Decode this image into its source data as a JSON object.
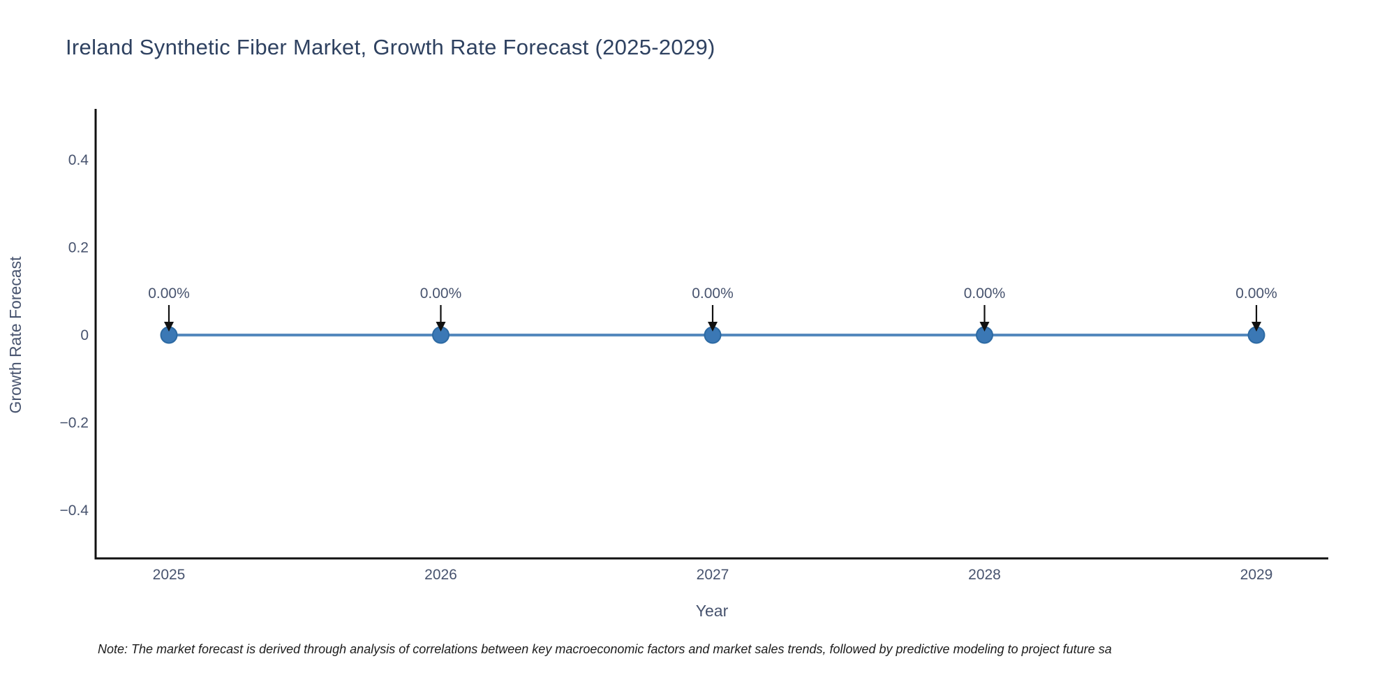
{
  "title": "Ireland Synthetic Fiber Market, Growth Rate Forecast (2025-2029)",
  "note": "Note: The market forecast is derived through analysis of correlations between key macroeconomic factors and market sales trends, followed by predictive modeling to project future sa",
  "chart_data": {
    "type": "line",
    "title": "Ireland Synthetic Fiber Market, Growth Rate Forecast (2025-2029)",
    "xlabel": "Year",
    "ylabel": "Growth Rate Forecast",
    "categories": [
      "2025",
      "2026",
      "2027",
      "2028",
      "2029"
    ],
    "series": [
      {
        "name": "Growth Rate Forecast",
        "values": [
          0,
          0,
          0,
          0,
          0
        ],
        "point_labels": [
          "0.00%",
          "0.00%",
          "0.00%",
          "0.00%",
          "0.00%"
        ]
      }
    ],
    "yticks": [
      0.4,
      0.2,
      0,
      -0.2,
      -0.4
    ],
    "ylim": [
      -0.5,
      0.5
    ],
    "grid": false,
    "legend": false,
    "annotations_have_arrows": true,
    "colors": {
      "line": "#5589bd",
      "marker": "#3b78b5",
      "marker_edge": "#2d6aa3",
      "axis": "#111111",
      "arrow": "#111111",
      "title_text": "#2e4160",
      "label_text": "#47536e",
      "note_text": "#1c1c1c",
      "background": "#ffffff"
    }
  }
}
